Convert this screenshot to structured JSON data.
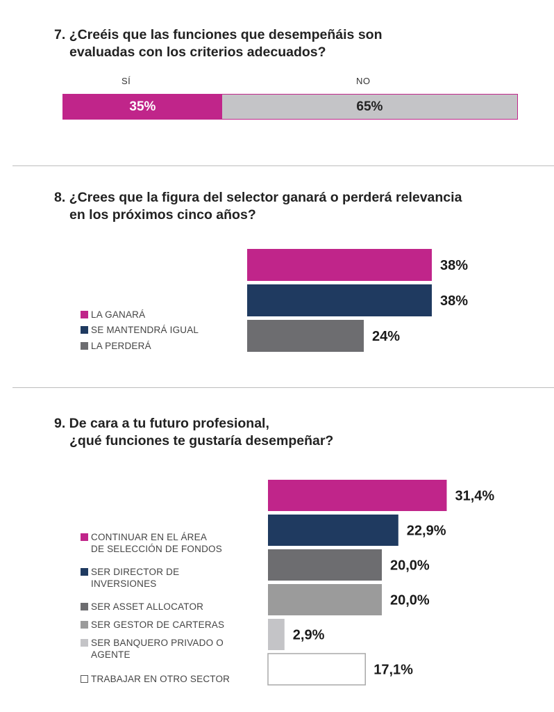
{
  "colors": {
    "magenta": "#c0258a",
    "navy": "#1f3a60",
    "dark_gray": "#6d6d70",
    "mid_gray": "#9b9b9b",
    "light_gray": "#c4c4c7",
    "white": "#ffffff",
    "outline": "#a8a8a8"
  },
  "questions": {
    "q7": {
      "title_l1": "7. ¿Creéis que las funciones que desempeñáis son",
      "title_l2": "evaluadas con los criterios adecuados?"
    },
    "q8": {
      "title_l1": "8. ¿Crees que la figura del selector ganará o perderá relevancia",
      "title_l2": "en los próximos cinco años?"
    },
    "q9": {
      "title_l1": "9. De cara a tu futuro profesional,",
      "title_l2": "¿qué funciones te gustaría desempeñar?"
    }
  },
  "chart_data": [
    {
      "type": "bar",
      "orientation": "stacked-horizontal",
      "categories": [
        "SÍ",
        "NO"
      ],
      "values": [
        35,
        65
      ],
      "value_labels": [
        "35%",
        "65%"
      ],
      "colors": [
        "#c0258a",
        "#c4c4c7"
      ]
    },
    {
      "type": "bar",
      "orientation": "horizontal",
      "categories": [
        "LA GANARÁ",
        "SE MANTENDRÁ IGUAL",
        "LA PERDERÁ"
      ],
      "values": [
        38,
        38,
        24
      ],
      "value_labels": [
        "38%",
        "38%",
        "24%"
      ],
      "colors": [
        "#c0258a",
        "#1f3a60",
        "#6d6d70"
      ],
      "legend": [
        "LA GANARÁ",
        "SE MANTENDRÁ IGUAL",
        "LA PERDERÁ"
      ]
    },
    {
      "type": "bar",
      "orientation": "horizontal",
      "categories": [
        "CONTINUAR EN EL ÁREA DE SELECCIÓN DE FONDOS",
        "SER DIRECTOR DE INVERSIONES",
        "SER ASSET ALLOCATOR",
        "SER GESTOR DE CARTERAS",
        "SER BANQUERO PRIVADO O AGENTE",
        "TRABAJAR EN OTRO SECTOR"
      ],
      "values": [
        31.4,
        22.9,
        20.0,
        20.0,
        2.9,
        17.1
      ],
      "value_labels": [
        "31,4%",
        "22,9%",
        "20,0%",
        "20,0%",
        "2,9%",
        "17,1%"
      ],
      "colors": [
        "#c0258a",
        "#1f3a60",
        "#6d6d70",
        "#9b9b9b",
        "#c4c4c7",
        "#ffffff"
      ],
      "legend": [
        [
          "CONTINUAR EN EL ÁREA",
          "DE SELECCIÓN DE FONDOS"
        ],
        [
          "SER DIRECTOR DE",
          "INVERSIONES"
        ],
        [
          "SER ASSET ALLOCATOR"
        ],
        [
          "SER GESTOR DE CARTERAS"
        ],
        [
          "SER BANQUERO PRIVADO O",
          "AGENTE"
        ],
        [
          "TRABAJAR EN OTRO SECTOR"
        ]
      ]
    }
  ]
}
